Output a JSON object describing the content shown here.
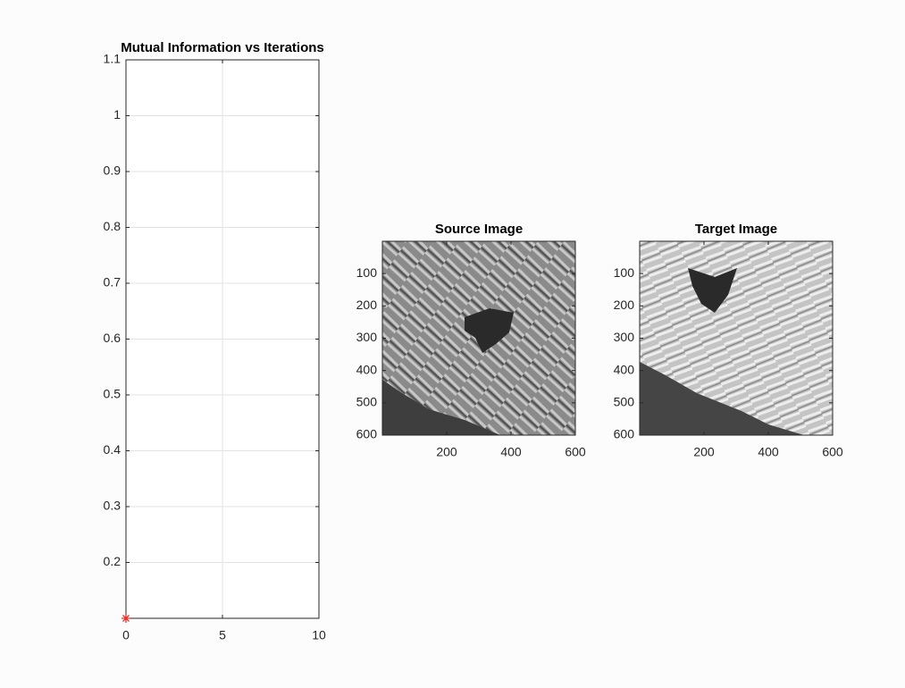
{
  "chart_data": [
    {
      "type": "scatter",
      "title": "Mutual Information vs Iterations",
      "x": [
        0
      ],
      "values": [
        0.1
      ],
      "color": "#e8302c",
      "marker": "asterisk",
      "xlim": [
        0,
        10
      ],
      "xticks": [
        0,
        5,
        10
      ],
      "ylim": [
        0.1,
        1.1
      ],
      "yticks": [
        0.2,
        0.3,
        0.4,
        0.5,
        0.6,
        0.7,
        0.8,
        0.9,
        1,
        1.1
      ],
      "grid": true
    },
    {
      "type": "image",
      "title": "Source Image",
      "xlim": [
        0,
        600
      ],
      "xticks": [
        200,
        400,
        600
      ],
      "ylim": [
        0,
        600
      ],
      "yticks": [
        100,
        200,
        300,
        400,
        500,
        600
      ],
      "y_reversed": true
    },
    {
      "type": "image",
      "title": "Target Image",
      "xlim": [
        0,
        600
      ],
      "xticks": [
        200,
        400,
        600
      ],
      "ylim": [
        0,
        600
      ],
      "yticks": [
        100,
        200,
        300,
        400,
        500,
        600
      ],
      "y_reversed": true
    }
  ]
}
